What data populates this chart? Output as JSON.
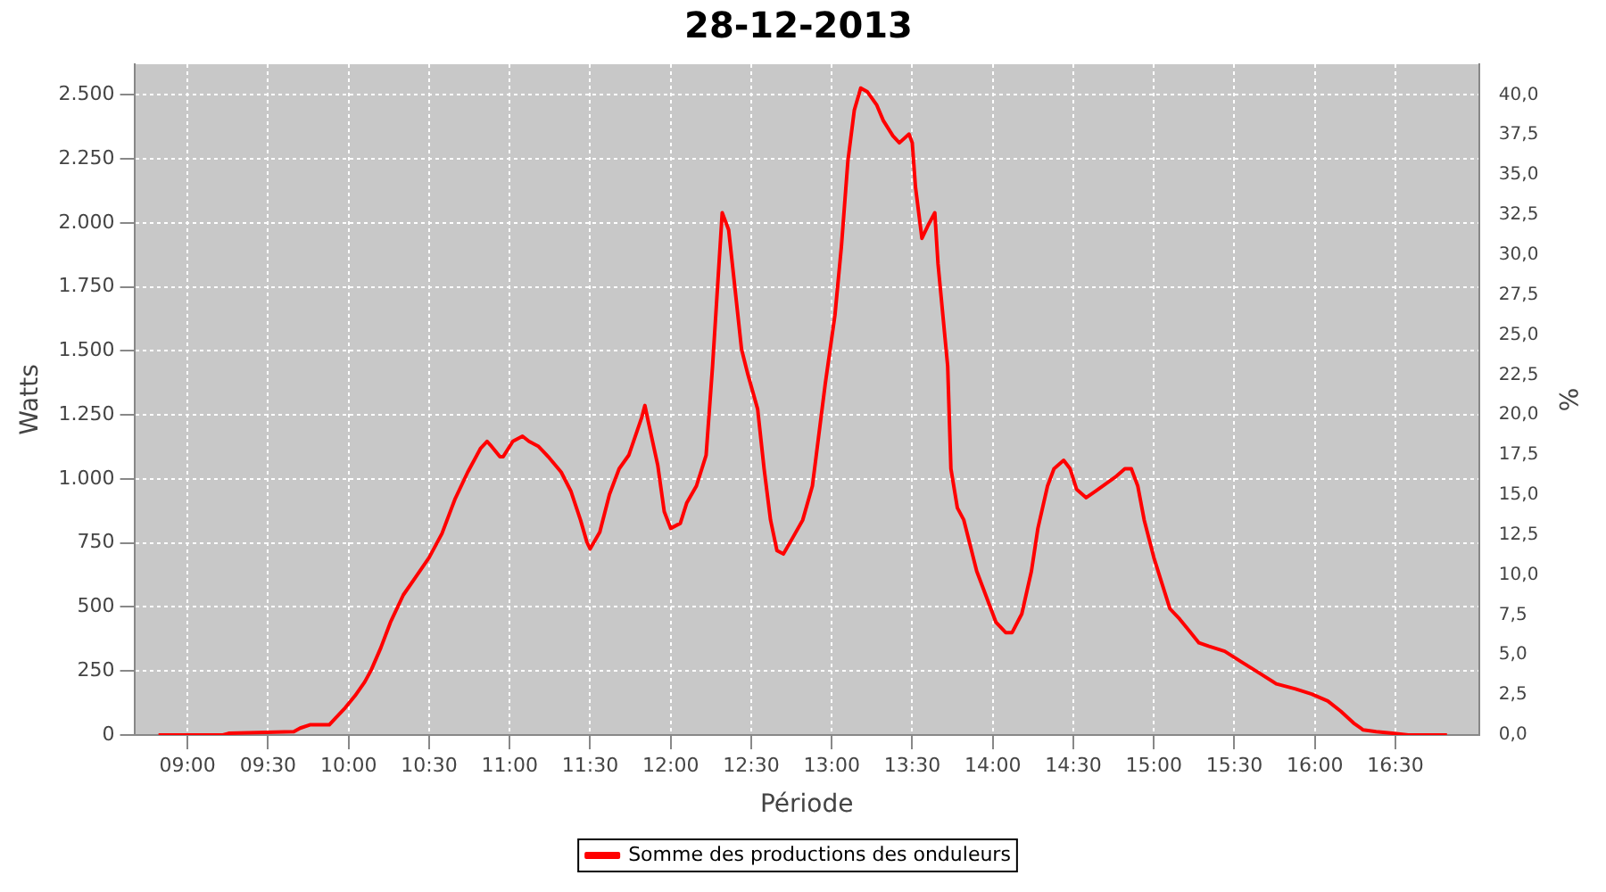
{
  "chart_data": {
    "type": "line",
    "title": "28-12-2013",
    "xlabel": "Période",
    "ylabel": "Watts",
    "y2label": "%",
    "xlim": [
      8.67,
      17.02
    ],
    "xticks": [
      {
        "value": 9,
        "label": "09:00"
      },
      {
        "value": 9.5,
        "label": "09:30"
      },
      {
        "value": 10,
        "label": "10:00"
      },
      {
        "value": 10.5,
        "label": "10:30"
      },
      {
        "value": 11,
        "label": "11:00"
      },
      {
        "value": 11.5,
        "label": "11:30"
      },
      {
        "value": 12,
        "label": "12:00"
      },
      {
        "value": 12.5,
        "label": "12:30"
      },
      {
        "value": 13,
        "label": "13:00"
      },
      {
        "value": 13.5,
        "label": "13:30"
      },
      {
        "value": 14,
        "label": "14:00"
      },
      {
        "value": 14.5,
        "label": "14:30"
      },
      {
        "value": 15,
        "label": "15:00"
      },
      {
        "value": 15.5,
        "label": "15:30"
      },
      {
        "value": 16,
        "label": "16:00"
      },
      {
        "value": 16.5,
        "label": "16:30"
      }
    ],
    "ylim": [
      0,
      2620
    ],
    "yticks": [
      0,
      250,
      500,
      750,
      {
        "value": 1000,
        "label": "1.000"
      },
      {
        "value": 1250,
        "label": "1.250"
      },
      {
        "value": 1500,
        "label": "1.500"
      },
      {
        "value": 1750,
        "label": "1.750"
      },
      {
        "value": 2000,
        "label": "2.000"
      },
      {
        "value": 2250,
        "label": "2.250"
      },
      {
        "value": 2500,
        "label": "2.500"
      }
    ],
    "y2lim": [
      0,
      41.92
    ],
    "y2ticks": [
      {
        "value": 0,
        "label": "0,0"
      },
      {
        "value": 2.5,
        "label": "2,5"
      },
      {
        "value": 5,
        "label": "5,0"
      },
      {
        "value": 7.5,
        "label": "7,5"
      },
      {
        "value": 10,
        "label": "10,0"
      },
      {
        "value": 12.5,
        "label": "12,5"
      },
      {
        "value": 15,
        "label": "15,0"
      },
      {
        "value": 17.5,
        "label": "17,5"
      },
      {
        "value": 20,
        "label": "20,0"
      },
      {
        "value": 22.5,
        "label": "22,5"
      },
      {
        "value": 25,
        "label": "25,0"
      },
      {
        "value": 27.5,
        "label": "27,5"
      },
      {
        "value": 30,
        "label": "30,0"
      },
      {
        "value": 32.5,
        "label": "32,5"
      },
      {
        "value": 35,
        "label": "35,0"
      },
      {
        "value": 37.5,
        "label": "37,5"
      },
      {
        "value": 40,
        "label": "40,0"
      }
    ],
    "grid": true,
    "legend": "bottom",
    "marker": "none",
    "line_style": "solid",
    "series": [
      {
        "name": "Somme des productions des onduleurs",
        "color": "#ff0000",
        "x": [
          8.82,
          9.22,
          9.26,
          9.66,
          9.7,
          9.76,
          9.88,
          9.92,
          9.98,
          10.04,
          10.1,
          10.14,
          10.2,
          10.26,
          10.34,
          10.42,
          10.5,
          10.58,
          10.66,
          10.74,
          10.82,
          10.86,
          10.88,
          10.94,
          10.96,
          11.02,
          11.08,
          11.12,
          11.18,
          11.24,
          11.32,
          11.38,
          11.44,
          11.48,
          11.5,
          11.56,
          11.62,
          11.68,
          11.74,
          11.82,
          11.84,
          11.86,
          11.92,
          11.96,
          12.0,
          12.06,
          12.1,
          12.16,
          12.22,
          12.26,
          12.3,
          12.32,
          12.36,
          12.4,
          12.44,
          12.48,
          12.54,
          12.58,
          12.62,
          12.66,
          12.7,
          12.76,
          12.82,
          12.88,
          12.92,
          12.96,
          13.02,
          13.06,
          13.1,
          13.14,
          13.18,
          13.22,
          13.28,
          13.32,
          13.38,
          13.42,
          13.48,
          13.5,
          13.52,
          13.56,
          13.6,
          13.64,
          13.66,
          13.72,
          13.74,
          13.78,
          13.82,
          13.86,
          13.9,
          13.96,
          14.02,
          14.08,
          14.12,
          14.18,
          14.24,
          14.28,
          14.34,
          14.38,
          14.44,
          14.48,
          14.52,
          14.58,
          14.64,
          14.7,
          14.76,
          14.82,
          14.86,
          14.9,
          14.94,
          15.0,
          15.06,
          15.1,
          15.16,
          15.22,
          15.28,
          15.34,
          15.44,
          15.54,
          15.66,
          15.76,
          15.88,
          15.98,
          16.08,
          16.16,
          16.24,
          16.3,
          16.38,
          16.48,
          16.58,
          16.82
        ],
        "values": [
          0,
          0,
          7,
          13,
          27,
          40,
          40,
          67,
          107,
          153,
          207,
          253,
          340,
          440,
          547,
          620,
          693,
          787,
          920,
          1027,
          1120,
          1147,
          1133,
          1087,
          1087,
          1147,
          1167,
          1147,
          1127,
          1087,
          1027,
          953,
          840,
          753,
          727,
          793,
          940,
          1040,
          1093,
          1240,
          1287,
          1227,
          1053,
          873,
          807,
          827,
          907,
          973,
          1093,
          1440,
          1840,
          2040,
          1973,
          1740,
          1507,
          1407,
          1273,
          1040,
          840,
          720,
          707,
          773,
          840,
          973,
          1173,
          1373,
          1640,
          1907,
          2240,
          2440,
          2527,
          2513,
          2460,
          2400,
          2340,
          2313,
          2347,
          2313,
          2140,
          1940,
          1993,
          2040,
          1840,
          1440,
          1040,
          887,
          840,
          740,
          640,
          540,
          440,
          400,
          400,
          473,
          640,
          807,
          973,
          1040,
          1073,
          1040,
          960,
          927,
          953,
          980,
          1007,
          1040,
          1040,
          973,
          840,
          693,
          573,
          493,
          453,
          407,
          360,
          347,
          327,
          287,
          240,
          200,
          180,
          160,
          133,
          93,
          47,
          20,
          13,
          7,
          0,
          0
        ]
      }
    ]
  }
}
